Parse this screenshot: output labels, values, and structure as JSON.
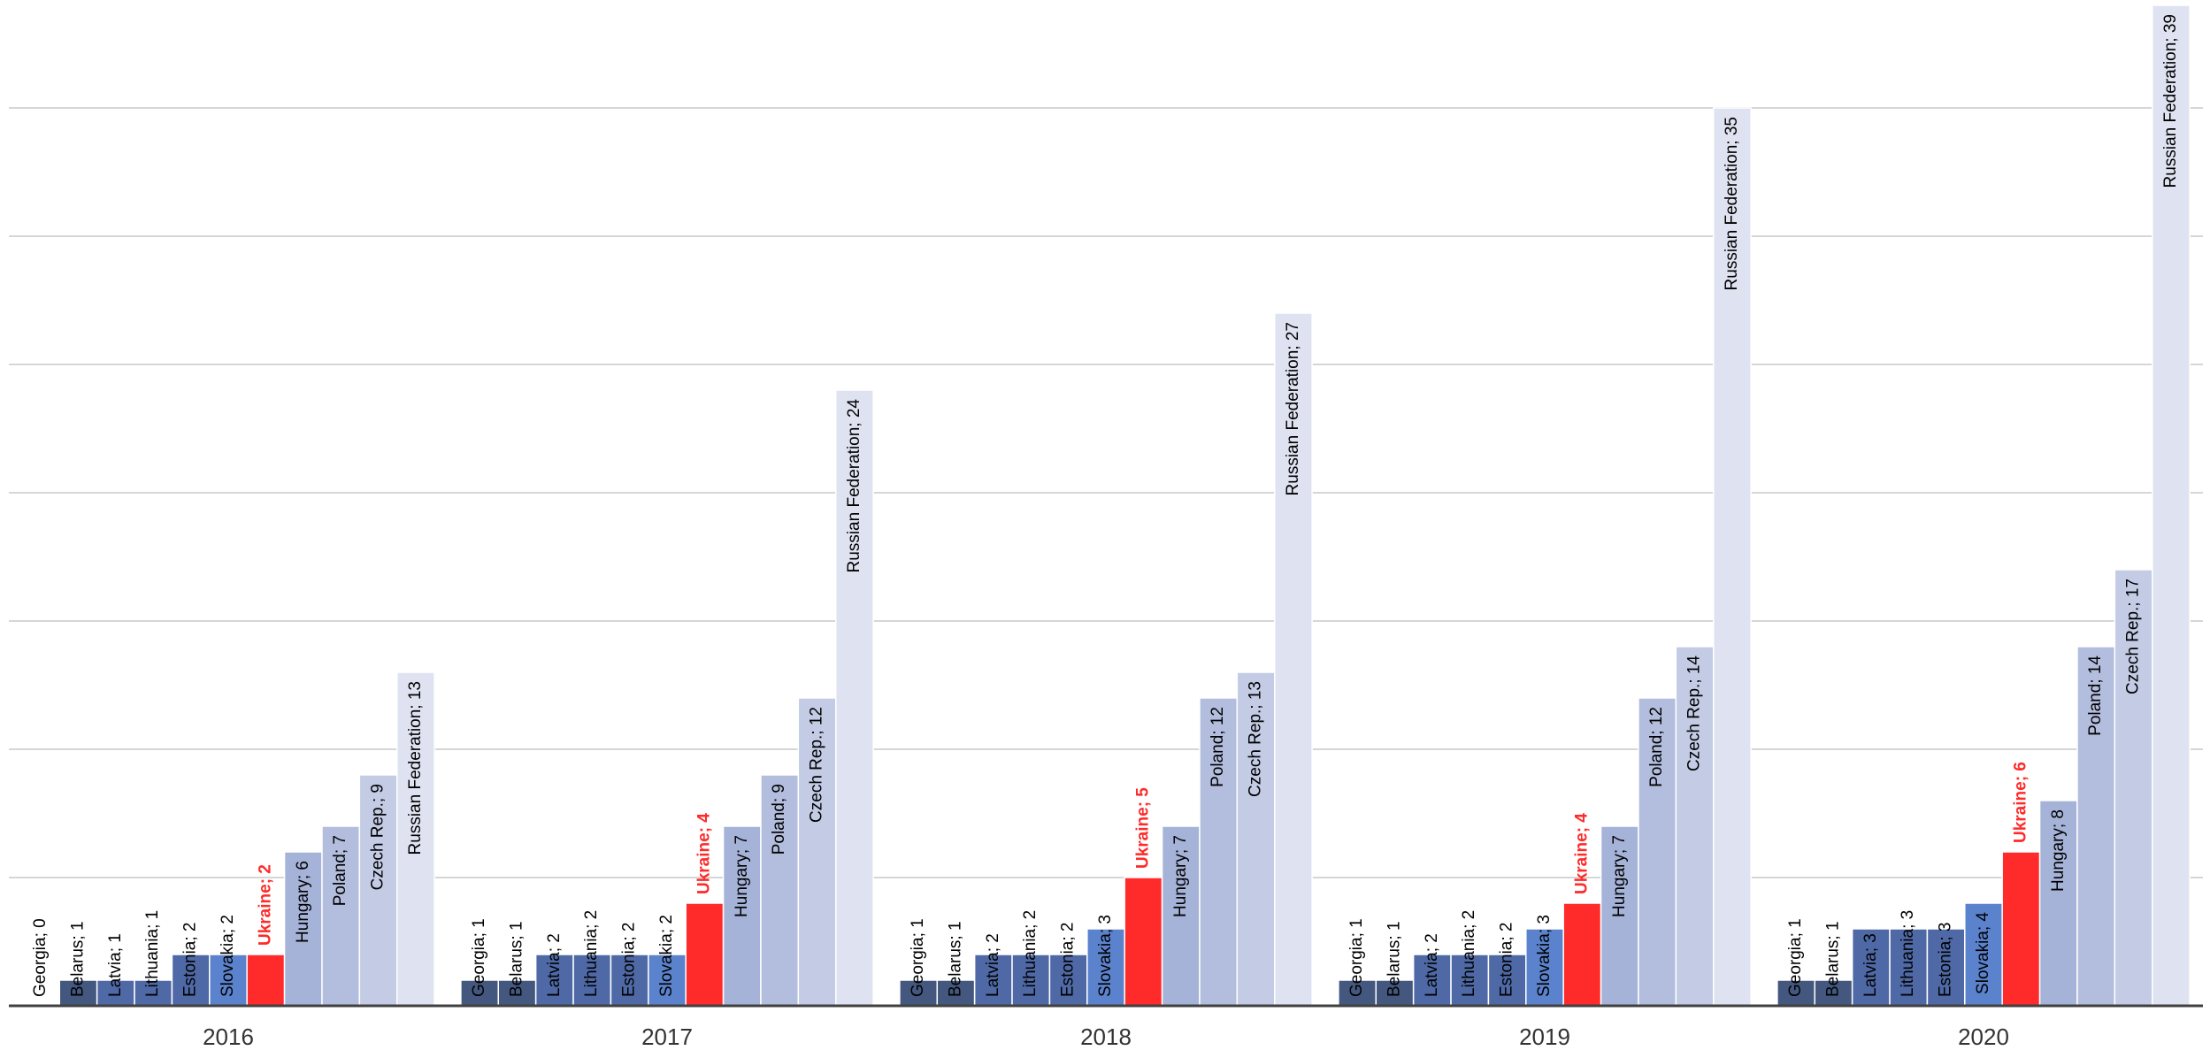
{
  "chart_data": {
    "type": "grouped-bar",
    "groups": [
      {
        "name": "2016",
        "categories": [
          "Georgia",
          "Belarus",
          "Latvia",
          "Lithuania",
          "Estonia",
          "Slovakia",
          "Ukraine",
          "Hungary",
          "Poland",
          "Czech Rep.",
          "Russian Federation"
        ],
        "values": [
          0,
          1,
          1,
          1,
          2,
          2,
          2,
          6,
          7,
          9,
          13
        ],
        "value_labels": [
          "Georgia; 0",
          "Belarus; 1",
          "Latvia; 1",
          "Lithuania; 1",
          "Estonia; 2",
          "Slovakia; 2",
          "Ukraine; 2",
          "Hungary; 6",
          "Poland; 7",
          "Czech Rep.; 9",
          "Russian Federation; 13"
        ]
      },
      {
        "name": "2017",
        "categories": [
          "Georgia",
          "Belarus",
          "Latvia",
          "Lithuania",
          "Estonia",
          "Slovakia",
          "Ukraine",
          "Hungary",
          "Poland",
          "Czech Rep.",
          "Russian Federation"
        ],
        "values": [
          1,
          1,
          2,
          2,
          2,
          2,
          4,
          7,
          9,
          12,
          24
        ],
        "value_labels": [
          "Georgia; 1",
          "Belarus; 1",
          "Latvia; 2",
          "Lithuania; 2",
          "Estonia; 2",
          "Slovakia; 2",
          "Ukraine; 4",
          "Hungary; 7",
          "Poland; 9",
          "Czech Rep.; 12",
          "Russian Federation; 24"
        ]
      },
      {
        "name": "2018",
        "categories": [
          "Georgia",
          "Belarus",
          "Latvia",
          "Lithuania",
          "Estonia",
          "Slovakia",
          "Ukraine",
          "Hungary",
          "Poland",
          "Czech Rep.",
          "Russian Federation"
        ],
        "values": [
          1,
          1,
          2,
          2,
          2,
          3,
          5,
          7,
          12,
          13,
          27
        ],
        "value_labels": [
          "Georgia; 1",
          "Belarus; 1",
          "Latvia; 2",
          "Lithuania; 2",
          "Estonia; 2",
          "Slovakia; 3",
          "Ukraine; 5",
          "Hungary; 7",
          "Poland; 12",
          "Czech Rep.; 13",
          "Russian Federation; 27"
        ]
      },
      {
        "name": "2019",
        "categories": [
          "Georgia",
          "Belarus",
          "Latvia",
          "Lithuania",
          "Estonia",
          "Slovakia",
          "Ukraine",
          "Hungary",
          "Poland",
          "Czech Rep.",
          "Russian Federation"
        ],
        "values": [
          1,
          1,
          2,
          2,
          2,
          3,
          4,
          7,
          12,
          14,
          35
        ],
        "value_labels": [
          "Georgia; 1",
          "Belarus; 1",
          "Latvia; 2",
          "Lithuania; 2",
          "Estonia; 2",
          "Slovakia; 3",
          "Ukraine; 4",
          "Hungary; 7",
          "Poland; 12",
          "Czech Rep.; 14",
          "Russian Federation; 35"
        ]
      },
      {
        "name": "2020",
        "categories": [
          "Georgia",
          "Belarus",
          "Latvia",
          "Lithuania",
          "Estonia",
          "Slovakia",
          "Ukraine",
          "Hungary",
          "Poland",
          "Czech Rep.",
          "Russian Federation"
        ],
        "values": [
          1,
          1,
          3,
          3,
          3,
          4,
          6,
          8,
          14,
          17,
          39
        ],
        "value_labels": [
          "Georgia; 1",
          "Belarus; 1",
          "Latvia; 3",
          "Lithuania; 3",
          "Estonia; 3",
          "Slovakia; 4",
          "Ukraine; 6",
          "Hungary; 8",
          "Poland; 14",
          "Czech Rep.; 17",
          "Russian Federation; 39"
        ]
      }
    ],
    "colors": [
      "#44587f",
      "#44587f",
      "#4f69a6",
      "#4f69a6",
      "#4f69a6",
      "#5b82cc",
      "#ff2a2a",
      "#a6b3d8",
      "#b3bddd",
      "#c3cbe5",
      "#dfe3f1"
    ],
    "label_colors": [
      "#000000",
      "#000000",
      "#000000",
      "#000000",
      "#000000",
      "#000000",
      "#ff2a2a",
      "#000000",
      "#000000",
      "#000000",
      "#000000"
    ],
    "label_weights": [
      "normal",
      "normal",
      "normal",
      "normal",
      "normal",
      "normal",
      "bold",
      "normal",
      "normal",
      "normal",
      "normal"
    ],
    "label_positions": [
      "inside-end",
      "inside-end",
      "inside-end",
      "inside-end",
      "inside-end",
      "inside-end",
      "outside-end",
      "inside-end",
      "inside-end",
      "inside-end",
      "inside-end"
    ],
    "ylim": [
      0,
      39
    ],
    "yticks": [
      0,
      5,
      10,
      15,
      20,
      25,
      30,
      35
    ],
    "grid": true
  }
}
